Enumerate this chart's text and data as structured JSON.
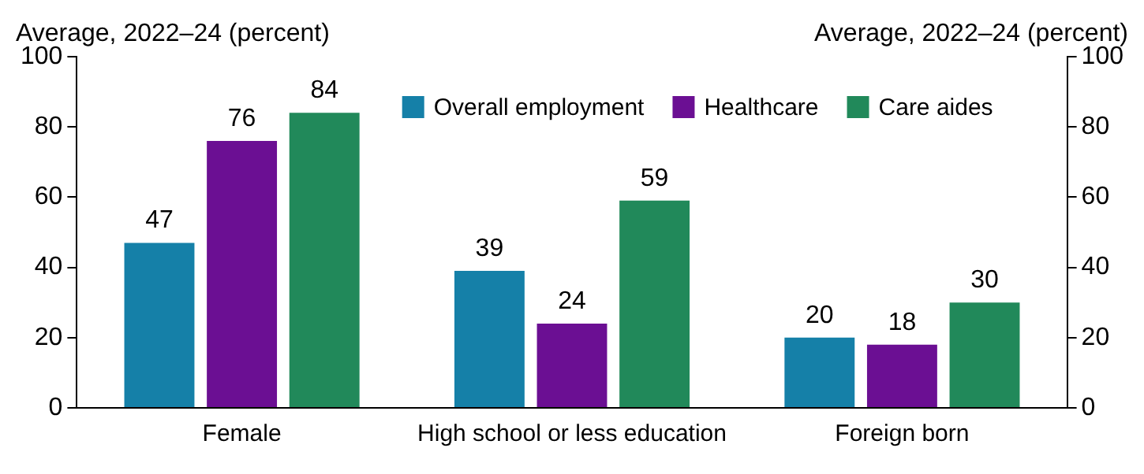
{
  "chart_data": {
    "type": "bar",
    "ylabel": "Average, 2022–24 (percent)",
    "y2label": "Average, 2022–24 (percent)",
    "categories": [
      "Female",
      "High school or less education",
      "Foreign born"
    ],
    "series": [
      {
        "name": "Overall employment",
        "color": "#1580a8",
        "values": [
          47,
          39,
          20
        ]
      },
      {
        "name": "Healthcare",
        "color": "#6b0f93",
        "values": [
          76,
          24,
          18
        ]
      },
      {
        "name": "Care aides",
        "color": "#21895a",
        "values": [
          84,
          59,
          30
        ]
      }
    ],
    "ylim": [
      0,
      100
    ],
    "yticks": [
      0,
      20,
      40,
      60,
      80,
      100
    ],
    "y2lim": [
      0,
      100
    ],
    "y2ticks": [
      0,
      20,
      40,
      60,
      80,
      100
    ],
    "grid": false,
    "legend": "top right",
    "data_labels": true
  }
}
